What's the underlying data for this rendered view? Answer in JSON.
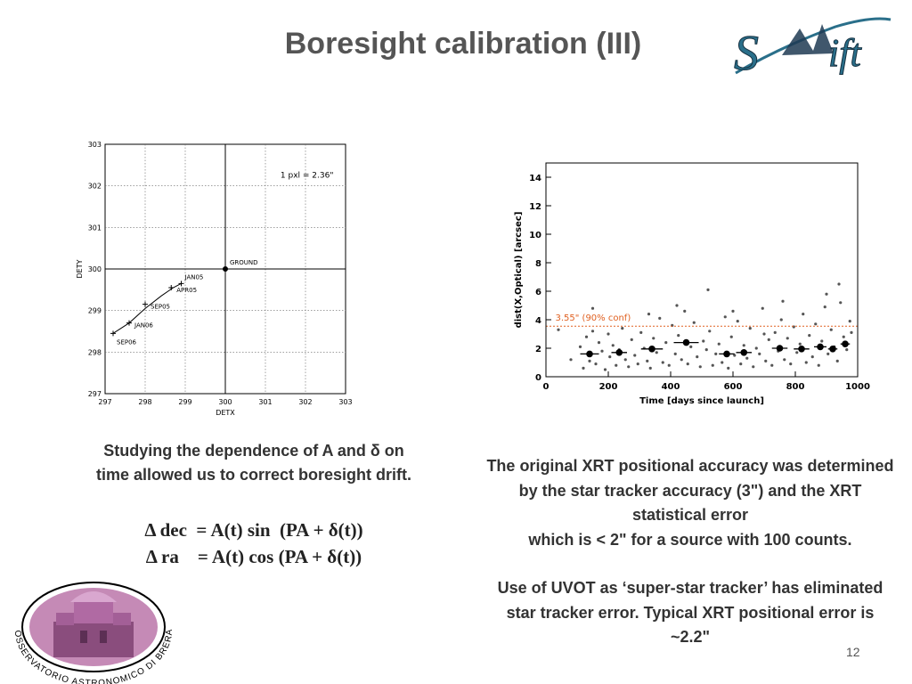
{
  "title": "Boresight calibration (III)",
  "page_number": "12",
  "logos": {
    "swift_text": "Swift",
    "brera_text": "OSSERVATORIO ASTRONOMICO DI BRERA"
  },
  "left_caption": {
    "line1": "Studying the dependence of A and  δ on",
    "line2": "time allowed us to correct boresight drift."
  },
  "formulas": {
    "line1": "Δ dec  = A(t) sin  (PA + δ(t))",
    "line2": "Δ ra    = A(t) cos (PA + δ(t))"
  },
  "right_text": {
    "paragraph1": "The original XRT positional accuracy was determined by the star  tracker accuracy  (3\")  and the XRT statistical error",
    "paragraph1b": "which is   < 2\" for a source with 100 counts.",
    "paragraph2": "Use of UVOT as ‘super-star tracker’ has eliminated star tracker error.  Typical XRT positional error is ~2.2\""
  },
  "chart_data": [
    {
      "type": "line",
      "xlabel": "DETX",
      "ylabel": "DETY",
      "xlim": [
        297,
        303
      ],
      "ylim": [
        297,
        303
      ],
      "x_ticks": [
        "297",
        "298",
        "299",
        "300",
        "301",
        "302",
        "303"
      ],
      "y_ticks": [
        "297",
        "298",
        "299",
        "300",
        "301",
        "302",
        "303"
      ],
      "grid": true,
      "annotation": "1  pxl  =  2.36\"",
      "reference_point": {
        "label": "GROUND",
        "x": 300,
        "y": 300
      },
      "series": [
        {
          "x": [
            297.2,
            297.6,
            298.0,
            298.4,
            298.7,
            298.9
          ],
          "y": [
            298.45,
            298.7,
            299.05,
            299.35,
            299.55,
            299.65
          ]
        }
      ],
      "points": [
        {
          "label": "JAN05",
          "x": 298.9,
          "y": 299.65
        },
        {
          "label": "APR05",
          "x": 298.65,
          "y": 299.55
        },
        {
          "label": "SEP05",
          "x": 298.0,
          "y": 299.15
        },
        {
          "label": "JAN06",
          "x": 297.6,
          "y": 298.7
        },
        {
          "label": "SEP06",
          "x": 297.2,
          "y": 298.45
        }
      ]
    },
    {
      "type": "scatter",
      "xlabel": "Time [days since launch]",
      "ylabel": "dist(X,Optical) [arcsec]",
      "xlim": [
        0,
        1000
      ],
      "ylim": [
        0,
        15
      ],
      "x_ticks": [
        "0",
        "200",
        "400",
        "600",
        "800",
        "1000"
      ],
      "y_ticks": [
        "0",
        "2",
        "4",
        "6",
        "8",
        "10",
        "12",
        "14"
      ],
      "threshold": {
        "y": 3.55,
        "label": "3.55\" (90% conf)",
        "color": "#e06020"
      },
      "binned_means": [
        {
          "x": 140,
          "y": 1.6,
          "xerr": 30
        },
        {
          "x": 235,
          "y": 1.7,
          "xerr": 25
        },
        {
          "x": 340,
          "y": 1.95,
          "xerr": 35
        },
        {
          "x": 450,
          "y": 2.4,
          "xerr": 40
        },
        {
          "x": 580,
          "y": 1.6,
          "xerr": 25
        },
        {
          "x": 635,
          "y": 1.7,
          "xerr": 25
        },
        {
          "x": 750,
          "y": 2.0,
          "xerr": 25
        },
        {
          "x": 820,
          "y": 1.95,
          "xerr": 25
        },
        {
          "x": 880,
          "y": 2.1,
          "xerr": 20
        },
        {
          "x": 920,
          "y": 1.95,
          "xerr": 15
        },
        {
          "x": 960,
          "y": 2.3,
          "xerr": 15
        }
      ],
      "points": [
        [
          40,
          3.3
        ],
        [
          80,
          1.2
        ],
        [
          110,
          2.1
        ],
        [
          120,
          0.6
        ],
        [
          130,
          2.8
        ],
        [
          140,
          1.1
        ],
        [
          150,
          3.2
        ],
        [
          160,
          0.9
        ],
        [
          170,
          2.4
        ],
        [
          180,
          1.8
        ],
        [
          190,
          0.5
        ],
        [
          200,
          3.0
        ],
        [
          205,
          1.4
        ],
        [
          215,
          2.2
        ],
        [
          225,
          0.8
        ],
        [
          235,
          1.9
        ],
        [
          245,
          3.4
        ],
        [
          255,
          1.2
        ],
        [
          265,
          0.7
        ],
        [
          275,
          2.6
        ],
        [
          285,
          1.5
        ],
        [
          295,
          0.9
        ],
        [
          305,
          3.1
        ],
        [
          315,
          2.0
        ],
        [
          325,
          1.1
        ],
        [
          335,
          0.6
        ],
        [
          345,
          2.7
        ],
        [
          355,
          1.7
        ],
        [
          365,
          4.1
        ],
        [
          375,
          1.0
        ],
        [
          385,
          2.4
        ],
        [
          395,
          0.8
        ],
        [
          405,
          3.6
        ],
        [
          415,
          1.6
        ],
        [
          425,
          2.9
        ],
        [
          435,
          1.2
        ],
        [
          445,
          4.6
        ],
        [
          455,
          0.9
        ],
        [
          465,
          2.1
        ],
        [
          475,
          3.8
        ],
        [
          485,
          1.4
        ],
        [
          495,
          0.7
        ],
        [
          505,
          2.5
        ],
        [
          515,
          1.9
        ],
        [
          525,
          3.2
        ],
        [
          535,
          0.8
        ],
        [
          545,
          1.6
        ],
        [
          555,
          2.3
        ],
        [
          565,
          1.0
        ],
        [
          575,
          4.2
        ],
        [
          585,
          0.6
        ],
        [
          595,
          2.8
        ],
        [
          605,
          1.5
        ],
        [
          615,
          3.9
        ],
        [
          625,
          0.9
        ],
        [
          635,
          2.2
        ],
        [
          645,
          1.3
        ],
        [
          655,
          3.4
        ],
        [
          665,
          0.7
        ],
        [
          675,
          2.0
        ],
        [
          685,
          1.6
        ],
        [
          695,
          4.8
        ],
        [
          705,
          1.1
        ],
        [
          715,
          2.6
        ],
        [
          725,
          0.8
        ],
        [
          735,
          3.1
        ],
        [
          745,
          1.8
        ],
        [
          755,
          4.0
        ],
        [
          765,
          1.2
        ],
        [
          775,
          2.7
        ],
        [
          785,
          0.9
        ],
        [
          795,
          3.5
        ],
        [
          805,
          1.7
        ],
        [
          815,
          2.3
        ],
        [
          825,
          4.4
        ],
        [
          835,
          1.0
        ],
        [
          845,
          2.9
        ],
        [
          855,
          1.4
        ],
        [
          865,
          3.7
        ],
        [
          875,
          0.8
        ],
        [
          885,
          2.5
        ],
        [
          895,
          4.9
        ],
        [
          905,
          1.6
        ],
        [
          915,
          3.3
        ],
        [
          925,
          2.1
        ],
        [
          935,
          1.1
        ],
        [
          945,
          5.2
        ],
        [
          955,
          2.8
        ],
        [
          965,
          1.9
        ],
        [
          975,
          3.9
        ],
        [
          520,
          6.1
        ],
        [
          900,
          5.8
        ],
        [
          940,
          6.5
        ],
        [
          420,
          5.0
        ],
        [
          760,
          5.3
        ],
        [
          980,
          3.1
        ],
        [
          600,
          4.6
        ],
        [
          150,
          4.8
        ],
        [
          330,
          4.4
        ],
        [
          700,
          3.0
        ]
      ]
    }
  ]
}
